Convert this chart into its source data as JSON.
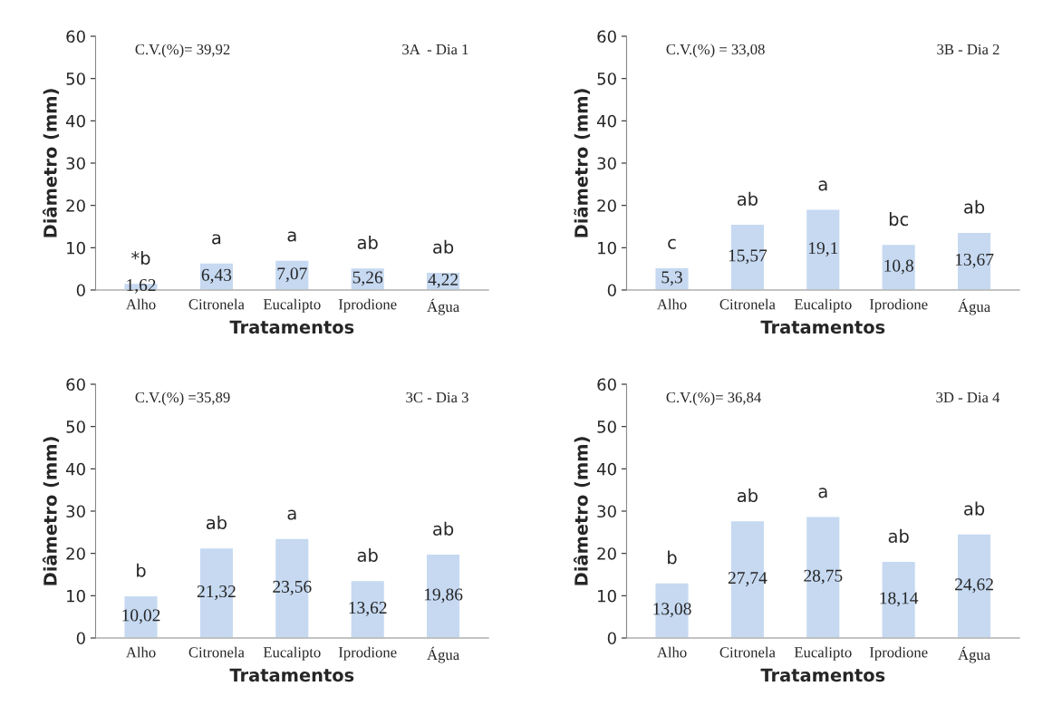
{
  "chart_data": [
    {
      "type": "bar",
      "categories": [
        "Alho",
        "Citronela",
        "Eucalipto",
        "Iprodione",
        "Água"
      ],
      "values": [
        1.62,
        6.43,
        7.07,
        5.26,
        4.22
      ],
      "value_labels": [
        "1,62",
        "6,43",
        "7,07",
        "5,26",
        "4,22"
      ],
      "color": "#c6d9f1",
      "xlabel": "Tratamentos",
      "ylabel": "Diâmetro (mm)",
      "ylim": [
        0,
        60
      ],
      "yticks": [
        0,
        10,
        20,
        30,
        40,
        50,
        60
      ],
      "grid": false,
      "annotations": [
        "C.V.(%)= 39,92",
        "3A  - Dia 1",
        {
          "text": "*b",
          "x": "Alho",
          "y": 1.62
        },
        {
          "text": "a",
          "x": "Citronela",
          "y": 6.43
        },
        {
          "text": "a",
          "x": "Eucalipto",
          "y": 7.07
        },
        {
          "text": "ab",
          "x": "Iprodione",
          "y": 5.26
        },
        {
          "text": "ab",
          "x": "Água",
          "y": 4.22
        }
      ]
    },
    {
      "type": "bar",
      "categories": [
        "Alho",
        "Citronela",
        "Eucalipto",
        "Iprodione",
        "Água"
      ],
      "values": [
        5.3,
        15.57,
        19.1,
        10.8,
        13.67
      ],
      "value_labels": [
        "5,3",
        "15,57",
        "19,1",
        "10,8",
        "13,67"
      ],
      "color": "#c6d9f1",
      "xlabel": "Tratamentos",
      "ylabel": "Diãmetro (mm)",
      "ylim": [
        0,
        60
      ],
      "yticks": [
        0,
        10,
        20,
        30,
        40,
        50,
        60
      ],
      "grid": false,
      "annotations": [
        "C.V.(%) = 33,08",
        "3B - Dia 2",
        {
          "text": "c",
          "x": "Alho",
          "y": 5.3
        },
        {
          "text": "ab",
          "x": "Citronela",
          "y": 15.57
        },
        {
          "text": "a",
          "x": "Eucalipto",
          "y": 19.1
        },
        {
          "text": "bc",
          "x": "Iprodione",
          "y": 10.8
        },
        {
          "text": "ab",
          "x": "Água",
          "y": 13.67
        }
      ]
    },
    {
      "type": "bar",
      "categories": [
        "Alho",
        "Citronela",
        "Eucalipto",
        "Iprodione",
        "Água"
      ],
      "values": [
        10.02,
        21.32,
        23.56,
        13.62,
        19.86
      ],
      "value_labels": [
        "10,02",
        "21,32",
        "23,56",
        "13,62",
        "19,86"
      ],
      "color": "#c6d9f1",
      "xlabel": "Tratamentos",
      "ylabel": "Diâmetro (mm)",
      "ylim": [
        0,
        60
      ],
      "yticks": [
        0,
        10,
        20,
        30,
        40,
        50,
        60
      ],
      "grid": false,
      "annotations": [
        "C.V.(%) =35,89",
        "3C - Dia 3",
        {
          "text": "b",
          "x": "Alho",
          "y": 10.02
        },
        {
          "text": "ab",
          "x": "Citronela",
          "y": 21.32
        },
        {
          "text": "a",
          "x": "Eucalipto",
          "y": 23.56
        },
        {
          "text": "ab",
          "x": "Iprodione",
          "y": 13.62
        },
        {
          "text": "ab",
          "x": "Água",
          "y": 19.86
        }
      ]
    },
    {
      "type": "bar",
      "categories": [
        "Alho",
        "Citronela",
        "Eucalipto",
        "Iprodione",
        "Água"
      ],
      "values": [
        13.08,
        27.74,
        28.75,
        18.14,
        24.62
      ],
      "value_labels": [
        "13,08",
        "27,74",
        "28,75",
        "18,14",
        "24,62"
      ],
      "color": "#c6d9f1",
      "xlabel": "Tratamentos",
      "ylabel": "Diâmetro (mm)",
      "ylim": [
        0,
        60
      ],
      "yticks": [
        0,
        10,
        20,
        30,
        40,
        50,
        60
      ],
      "grid": false,
      "annotations": [
        "C.V.(%)= 36,84",
        "3D - Dia 4",
        {
          "text": "b",
          "x": "Alho",
          "y": 13.08
        },
        {
          "text": "ab",
          "x": "Citronela",
          "y": 27.74
        },
        {
          "text": "a",
          "x": "Eucalipto",
          "y": 28.75
        },
        {
          "text": "ab",
          "x": "Iprodione",
          "y": 18.14
        },
        {
          "text": "ab",
          "x": "Água",
          "y": 24.62
        }
      ]
    }
  ]
}
